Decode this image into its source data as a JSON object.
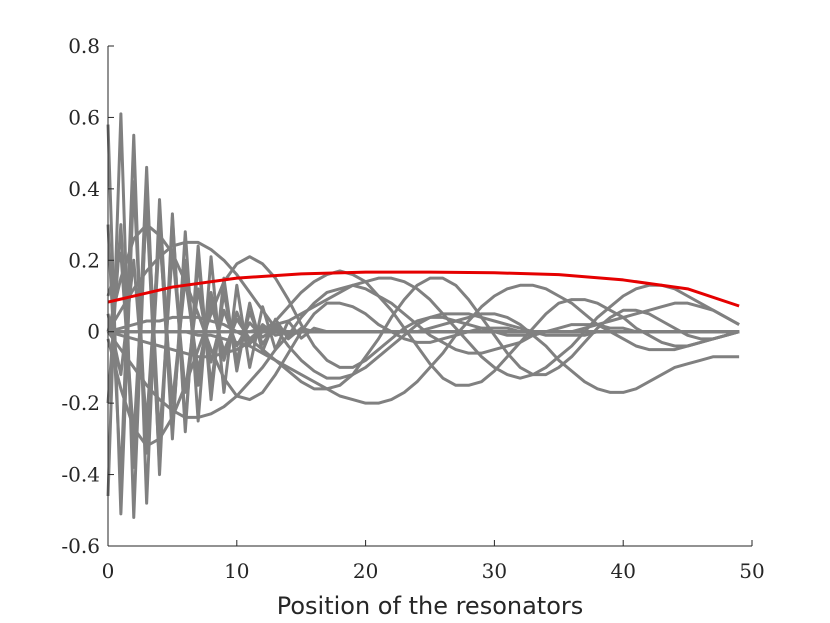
{
  "chart_data": {
    "type": "line",
    "title": "",
    "xlabel": "Position of the resonators",
    "ylabel": "",
    "xlim": [
      0,
      50
    ],
    "ylim": [
      -0.6,
      0.8
    ],
    "xticks": [
      0,
      10,
      20,
      30,
      40,
      50
    ],
    "xtick_labels": [
      "0",
      "10",
      "20",
      "30",
      "40",
      "50"
    ],
    "yticks": [
      -0.6,
      -0.4,
      -0.2,
      0,
      0.2,
      0.4,
      0.6,
      0.8
    ],
    "ytick_labels": [
      "-0.6",
      "-0.4",
      "-0.2",
      "0",
      "0.2",
      "0.4",
      "0.6",
      "0.8"
    ],
    "grid": false,
    "colors": {
      "highlight": "#e50000",
      "background_modes": "#808080",
      "axes": "#262626"
    },
    "highlight_series": {
      "x": [
        0,
        5,
        10,
        15,
        20,
        25,
        30,
        35,
        40,
        45,
        49
      ],
      "values": [
        0.083,
        0.125,
        0.15,
        0.162,
        0.167,
        0.167,
        0.165,
        0.16,
        0.145,
        0.12,
        0.072
      ]
    },
    "background_series": [
      {
        "values": [
          0.58,
          -0.51,
          0.42,
          -0.34,
          0.27,
          -0.2,
          0.15,
          -0.11,
          0.08,
          -0.055,
          0.035,
          -0.02,
          0.01,
          0,
          0,
          0,
          0,
          0,
          0,
          0,
          0,
          0,
          0,
          0,
          0,
          0,
          0,
          0,
          0,
          0,
          0,
          0,
          0,
          0,
          0,
          0,
          0,
          0,
          0,
          0,
          0,
          0,
          0,
          0,
          0,
          0,
          0,
          0,
          0,
          0
        ]
      },
      {
        "values": [
          -0.46,
          0.61,
          -0.52,
          0.4,
          -0.3,
          0.23,
          -0.17,
          0.12,
          -0.085,
          0.06,
          -0.04,
          0.025,
          -0.015,
          0.008,
          0,
          0,
          0,
          0,
          0,
          0,
          0,
          0,
          0,
          0,
          0,
          0,
          0,
          0,
          0,
          0,
          0,
          0,
          0,
          0,
          0,
          0,
          0,
          0,
          0,
          0,
          0,
          0,
          0,
          0,
          0,
          0,
          0,
          0,
          0,
          0
        ]
      },
      {
        "values": [
          0.3,
          -0.42,
          0.55,
          -0.48,
          0.37,
          -0.27,
          0.2,
          -0.15,
          0.11,
          -0.08,
          0.055,
          -0.035,
          0.02,
          -0.01,
          0,
          0,
          0,
          0,
          0,
          0,
          0,
          0,
          0,
          0,
          0,
          0,
          0,
          0,
          0,
          0,
          0,
          0,
          0,
          0,
          0,
          0,
          0,
          0,
          0,
          0,
          0,
          0,
          0,
          0,
          0,
          0,
          0,
          0,
          0,
          0
        ]
      },
      {
        "values": [
          -0.2,
          0.3,
          -0.38,
          0.46,
          -0.4,
          0.32,
          -0.26,
          0.2,
          -0.15,
          0.11,
          -0.08,
          0.055,
          -0.035,
          0.02,
          -0.01,
          0,
          0,
          0,
          0,
          0,
          0,
          0,
          0,
          0,
          0,
          0,
          0,
          0,
          0,
          0,
          0,
          0,
          0,
          0,
          0,
          0,
          0,
          0,
          0,
          0,
          0,
          0,
          0,
          0,
          0,
          0,
          0,
          0,
          0,
          0
        ]
      },
      {
        "values": [
          0.1,
          0.22,
          -0.3,
          0.35,
          -0.38,
          0.33,
          -0.28,
          0.24,
          -0.19,
          0.15,
          -0.11,
          0.08,
          -0.055,
          0.035,
          -0.02,
          0.01,
          0,
          0,
          0,
          0,
          0,
          0,
          0,
          0,
          0,
          0,
          0,
          0,
          0,
          0,
          0,
          0,
          0,
          0,
          0,
          0,
          0,
          0,
          0,
          0,
          0,
          0,
          0,
          0,
          0,
          0,
          0,
          0,
          0,
          0
        ]
      },
      {
        "values": [
          0.05,
          -0.12,
          0.2,
          -0.26,
          0.3,
          -0.3,
          0.28,
          -0.25,
          0.21,
          -0.17,
          0.13,
          -0.1,
          0.07,
          -0.05,
          0.03,
          -0.018,
          0.01,
          0,
          0,
          0,
          0,
          0,
          0,
          0,
          0,
          0,
          0,
          0,
          0,
          0,
          0,
          0,
          0,
          0,
          0,
          0,
          0,
          0,
          0,
          0,
          0,
          0,
          0,
          0,
          0,
          0,
          0,
          0,
          0,
          0
        ]
      },
      {
        "values": [
          0.0,
          0.15,
          0.26,
          0.3,
          0.27,
          0.22,
          0.14,
          0.05,
          -0.05,
          -0.13,
          -0.18,
          -0.19,
          -0.17,
          -0.12,
          -0.06,
          0.0,
          0.05,
          0.08,
          0.08,
          0.07,
          0.05,
          0.02,
          0.0,
          -0.02,
          -0.03,
          -0.03,
          -0.02,
          -0.01,
          0,
          0.01,
          0.01,
          0.01,
          0,
          0,
          0,
          0,
          0,
          0,
          0,
          0,
          0,
          0,
          0,
          0,
          0,
          0,
          0,
          0,
          0,
          0
        ]
      },
      {
        "values": [
          -0.02,
          -0.16,
          -0.27,
          -0.32,
          -0.3,
          -0.24,
          -0.15,
          -0.05,
          0.05,
          0.14,
          0.19,
          0.21,
          0.19,
          0.15,
          0.09,
          0.02,
          -0.04,
          -0.08,
          -0.1,
          -0.1,
          -0.08,
          -0.05,
          -0.02,
          0.01,
          0.03,
          0.04,
          0.04,
          0.03,
          0.02,
          0.01,
          0,
          -0.01,
          -0.01,
          -0.01,
          0,
          0,
          0,
          0,
          0,
          0,
          0,
          0,
          0,
          0,
          0,
          0,
          0,
          0,
          0,
          0
        ]
      },
      {
        "values": [
          0.0,
          0.06,
          0.12,
          0.17,
          0.21,
          0.24,
          0.25,
          0.25,
          0.23,
          0.2,
          0.16,
          0.11,
          0.06,
          0.01,
          -0.04,
          -0.08,
          -0.11,
          -0.13,
          -0.13,
          -0.12,
          -0.1,
          -0.07,
          -0.04,
          -0.01,
          0.02,
          0.04,
          0.05,
          0.05,
          0.05,
          0.04,
          0.03,
          0.02,
          0.01,
          0,
          -0.01,
          -0.01,
          -0.01,
          -0.01,
          0,
          0,
          0,
          0,
          0,
          0,
          0,
          0,
          0,
          0,
          0,
          0
        ]
      },
      {
        "values": [
          0.0,
          -0.05,
          -0.1,
          -0.15,
          -0.19,
          -0.22,
          -0.24,
          -0.24,
          -0.23,
          -0.21,
          -0.18,
          -0.14,
          -0.1,
          -0.05,
          -0.01,
          0.04,
          0.08,
          0.11,
          0.12,
          0.13,
          0.12,
          0.1,
          0.08,
          0.05,
          0.02,
          -0.01,
          -0.03,
          -0.05,
          -0.06,
          -0.06,
          -0.05,
          -0.04,
          -0.03,
          -0.01,
          0,
          0.01,
          0.02,
          0.02,
          0.02,
          0.01,
          0.01,
          0,
          0,
          0,
          0,
          0,
          0,
          0,
          0,
          0
        ]
      },
      {
        "values": [
          0.0,
          -0.01,
          -0.02,
          -0.03,
          -0.04,
          -0.05,
          -0.06,
          -0.07,
          -0.07,
          -0.06,
          -0.05,
          -0.03,
          0.0,
          0.03,
          0.07,
          0.11,
          0.14,
          0.16,
          0.17,
          0.16,
          0.14,
          0.1,
          0.06,
          0.01,
          -0.04,
          -0.09,
          -0.13,
          -0.15,
          -0.15,
          -0.14,
          -0.11,
          -0.07,
          -0.03,
          0.01,
          0.05,
          0.08,
          0.09,
          0.09,
          0.08,
          0.06,
          0.04,
          0.01,
          -0.01,
          -0.03,
          -0.04,
          -0.04,
          -0.03,
          -0.02,
          -0.01,
          0.0
        ]
      },
      {
        "values": [
          0.0,
          0.01,
          0.02,
          0.03,
          0.03,
          0.04,
          0.04,
          0.04,
          0.03,
          0.02,
          0.0,
          -0.02,
          -0.05,
          -0.08,
          -0.11,
          -0.14,
          -0.16,
          -0.16,
          -0.15,
          -0.12,
          -0.07,
          -0.02,
          0.04,
          0.09,
          0.13,
          0.15,
          0.15,
          0.13,
          0.09,
          0.04,
          -0.01,
          -0.06,
          -0.1,
          -0.12,
          -0.12,
          -0.1,
          -0.07,
          -0.03,
          0.01,
          0.04,
          0.06,
          0.06,
          0.05,
          0.03,
          0.01,
          -0.01,
          -0.02,
          -0.02,
          -0.01,
          0.0
        ]
      },
      {
        "values": [
          0.0,
          0.0,
          0.0,
          0.0,
          0.0,
          0.0,
          0.0,
          -0.01,
          -0.01,
          -0.02,
          -0.03,
          -0.04,
          -0.06,
          -0.08,
          -0.1,
          -0.12,
          -0.14,
          -0.16,
          -0.18,
          -0.19,
          -0.2,
          -0.2,
          -0.19,
          -0.17,
          -0.14,
          -0.1,
          -0.06,
          -0.01,
          0.03,
          0.07,
          0.1,
          0.12,
          0.13,
          0.13,
          0.12,
          0.1,
          0.08,
          0.05,
          0.02,
          0.0,
          -0.02,
          -0.04,
          -0.05,
          -0.05,
          -0.05,
          -0.04,
          -0.03,
          -0.02,
          -0.01,
          0.0
        ]
      },
      {
        "values": [
          0.0,
          0.0,
          0.0,
          0.0,
          0.0,
          0.0,
          0.0,
          0.0,
          0.0,
          0.0,
          0.0,
          0.0,
          0.01,
          0.02,
          0.03,
          0.05,
          0.07,
          0.09,
          0.11,
          0.13,
          0.14,
          0.15,
          0.15,
          0.14,
          0.12,
          0.09,
          0.05,
          0.01,
          -0.03,
          -0.07,
          -0.1,
          -0.12,
          -0.13,
          -0.12,
          -0.1,
          -0.07,
          -0.04,
          0.0,
          0.04,
          0.07,
          0.1,
          0.12,
          0.13,
          0.13,
          0.12,
          0.1,
          0.08,
          0.06,
          0.04,
          0.02
        ]
      },
      {
        "values": [
          0.0,
          0.0,
          0.0,
          0.0,
          0.0,
          0.0,
          0.0,
          0.0,
          0.0,
          0.0,
          0.0,
          0.0,
          0.0,
          0.0,
          0.0,
          0.0,
          0.0,
          0.0,
          0.0,
          0.0,
          0.0,
          0.0,
          0.0,
          0.0,
          0.0,
          0.01,
          0.02,
          0.03,
          0.04,
          0.05,
          0.05,
          0.04,
          0.02,
          -0.01,
          -0.04,
          -0.08,
          -0.11,
          -0.14,
          -0.16,
          -0.17,
          -0.17,
          -0.16,
          -0.14,
          -0.12,
          -0.1,
          -0.09,
          -0.08,
          -0.07,
          -0.07,
          -0.07
        ]
      },
      {
        "values": [
          0.0,
          0.0,
          0.0,
          0.0,
          0.0,
          0.0,
          0.0,
          0.0,
          0.0,
          0.0,
          0.0,
          0.0,
          0.0,
          0.0,
          0.0,
          0.0,
          0.0,
          0.0,
          0.0,
          0.0,
          0.0,
          0.0,
          0.0,
          0.0,
          0.0,
          0.0,
          0.0,
          0.0,
          0.0,
          0.0,
          0.0,
          0.0,
          0.0,
          0.0,
          0.0,
          0.0,
          0.0,
          0.01,
          0.02,
          0.03,
          0.04,
          0.05,
          0.06,
          0.07,
          0.08,
          0.08,
          0.07,
          0.06,
          0.04,
          0.02
        ]
      }
    ]
  }
}
